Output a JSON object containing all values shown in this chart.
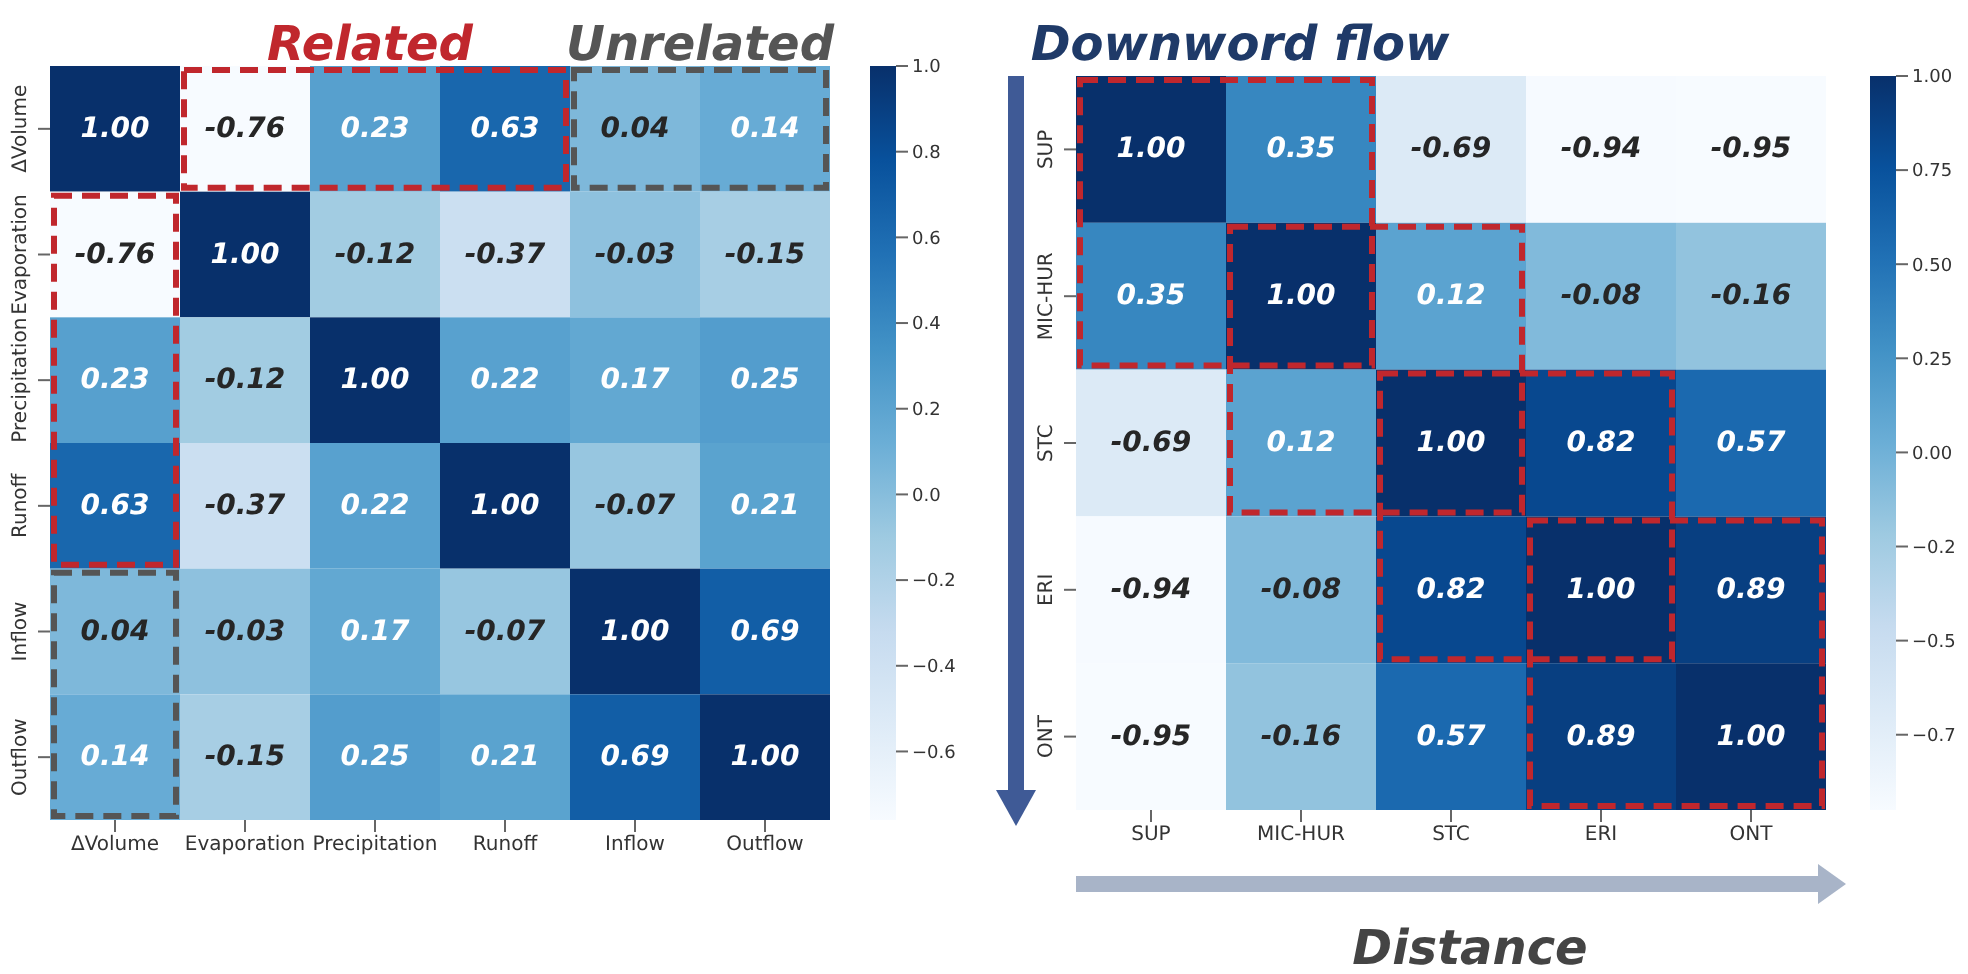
{
  "chart_data": [
    {
      "type": "heatmap",
      "categories": [
        "ΔVolume",
        "Evaporation",
        "Precipitation",
        "Runoff",
        "Inflow",
        "Outflow"
      ],
      "y_categories": [
        "ΔVolume",
        "Evaporation",
        "Precipitation",
        "Runoff",
        "Inflow",
        "Outflow"
      ],
      "cells": [
        [
          1.0,
          -0.76,
          0.23,
          0.63,
          0.04,
          0.14
        ],
        [
          -0.76,
          1.0,
          -0.12,
          -0.37,
          -0.03,
          -0.15
        ],
        [
          0.23,
          -0.12,
          1.0,
          0.22,
          0.17,
          0.25
        ],
        [
          0.63,
          -0.37,
          0.22,
          1.0,
          -0.07,
          0.21
        ],
        [
          0.04,
          -0.03,
          0.17,
          -0.07,
          1.0,
          0.69
        ],
        [
          0.14,
          -0.15,
          0.25,
          0.21,
          0.69,
          1.0
        ]
      ],
      "cell_labels": [
        [
          "1.00",
          "-0.76",
          "0.23",
          "0.63",
          "0.04",
          "0.14"
        ],
        [
          "-0.76",
          "1.00",
          "-0.12",
          "-0.37",
          "-0.03",
          "-0.15"
        ],
        [
          "0.23",
          "-0.12",
          "1.00",
          "0.22",
          "0.17",
          "0.25"
        ],
        [
          "0.63",
          "-0.37",
          "0.22",
          "1.00",
          "-0.07",
          "0.21"
        ],
        [
          "0.04",
          "-0.03",
          "0.17",
          "-0.07",
          "1.00",
          "0.69"
        ],
        [
          "0.14",
          "-0.15",
          "0.25",
          "0.21",
          "0.69",
          "1.00"
        ]
      ],
      "clim": [
        -0.76,
        1.0
      ],
      "cticks": [
        {
          "value": -0.6,
          "label": "−0.6"
        },
        {
          "value": -0.4,
          "label": "−0.4"
        },
        {
          "value": -0.2,
          "label": "−0.2"
        },
        {
          "value": 0,
          "label": "0.0"
        },
        {
          "value": 0.2,
          "label": "0.2"
        },
        {
          "value": 0.4,
          "label": "0.4"
        },
        {
          "value": 0.6,
          "label": "0.6"
        },
        {
          "value": 0.8,
          "label": "0.8"
        },
        {
          "value": 1,
          "label": "1.0"
        }
      ],
      "annotations": [
        "Related",
        "Unrelated"
      ]
    },
    {
      "type": "heatmap",
      "categories": [
        "SUP",
        "MIC-HUR",
        "STC",
        "ERI",
        "ONT"
      ],
      "y_categories": [
        "SUP",
        "MIC-HUR",
        "STC",
        "ERI",
        "ONT"
      ],
      "cells": [
        [
          1.0,
          0.35,
          -0.69,
          -0.94,
          -0.95
        ],
        [
          0.35,
          1.0,
          0.12,
          -0.08,
          -0.16
        ],
        [
          -0.69,
          0.12,
          1.0,
          0.82,
          0.57
        ],
        [
          -0.94,
          -0.08,
          0.82,
          1.0,
          0.89
        ],
        [
          -0.95,
          -0.16,
          0.57,
          0.89,
          1.0
        ]
      ],
      "cell_labels": [
        [
          "1.00",
          "0.35",
          "-0.69",
          "-0.94",
          "-0.95"
        ],
        [
          "0.35",
          "1.00",
          "0.12",
          "-0.08",
          "-0.16"
        ],
        [
          "-0.69",
          "0.12",
          "1.00",
          "0.82",
          "0.57"
        ],
        [
          "-0.94",
          "-0.08",
          "0.82",
          "1.00",
          "0.89"
        ],
        [
          "-0.95",
          "-0.16",
          "0.57",
          "0.89",
          "1.00"
        ]
      ],
      "clim": [
        -0.95,
        1.0
      ],
      "cticks": [
        {
          "value": -0.75,
          "label": "−0.7"
        },
        {
          "value": -0.5,
          "label": "−0.5"
        },
        {
          "value": -0.25,
          "label": "−0.2"
        },
        {
          "value": 0,
          "label": "0.00"
        },
        {
          "value": 0.25,
          "label": "0.25"
        },
        {
          "value": 0.5,
          "label": "0.50"
        },
        {
          "value": 0.75,
          "label": "0.75"
        },
        {
          "value": 1,
          "label": "1.00"
        }
      ],
      "annotations": [
        "Downword flow",
        "Distance"
      ]
    }
  ]
}
